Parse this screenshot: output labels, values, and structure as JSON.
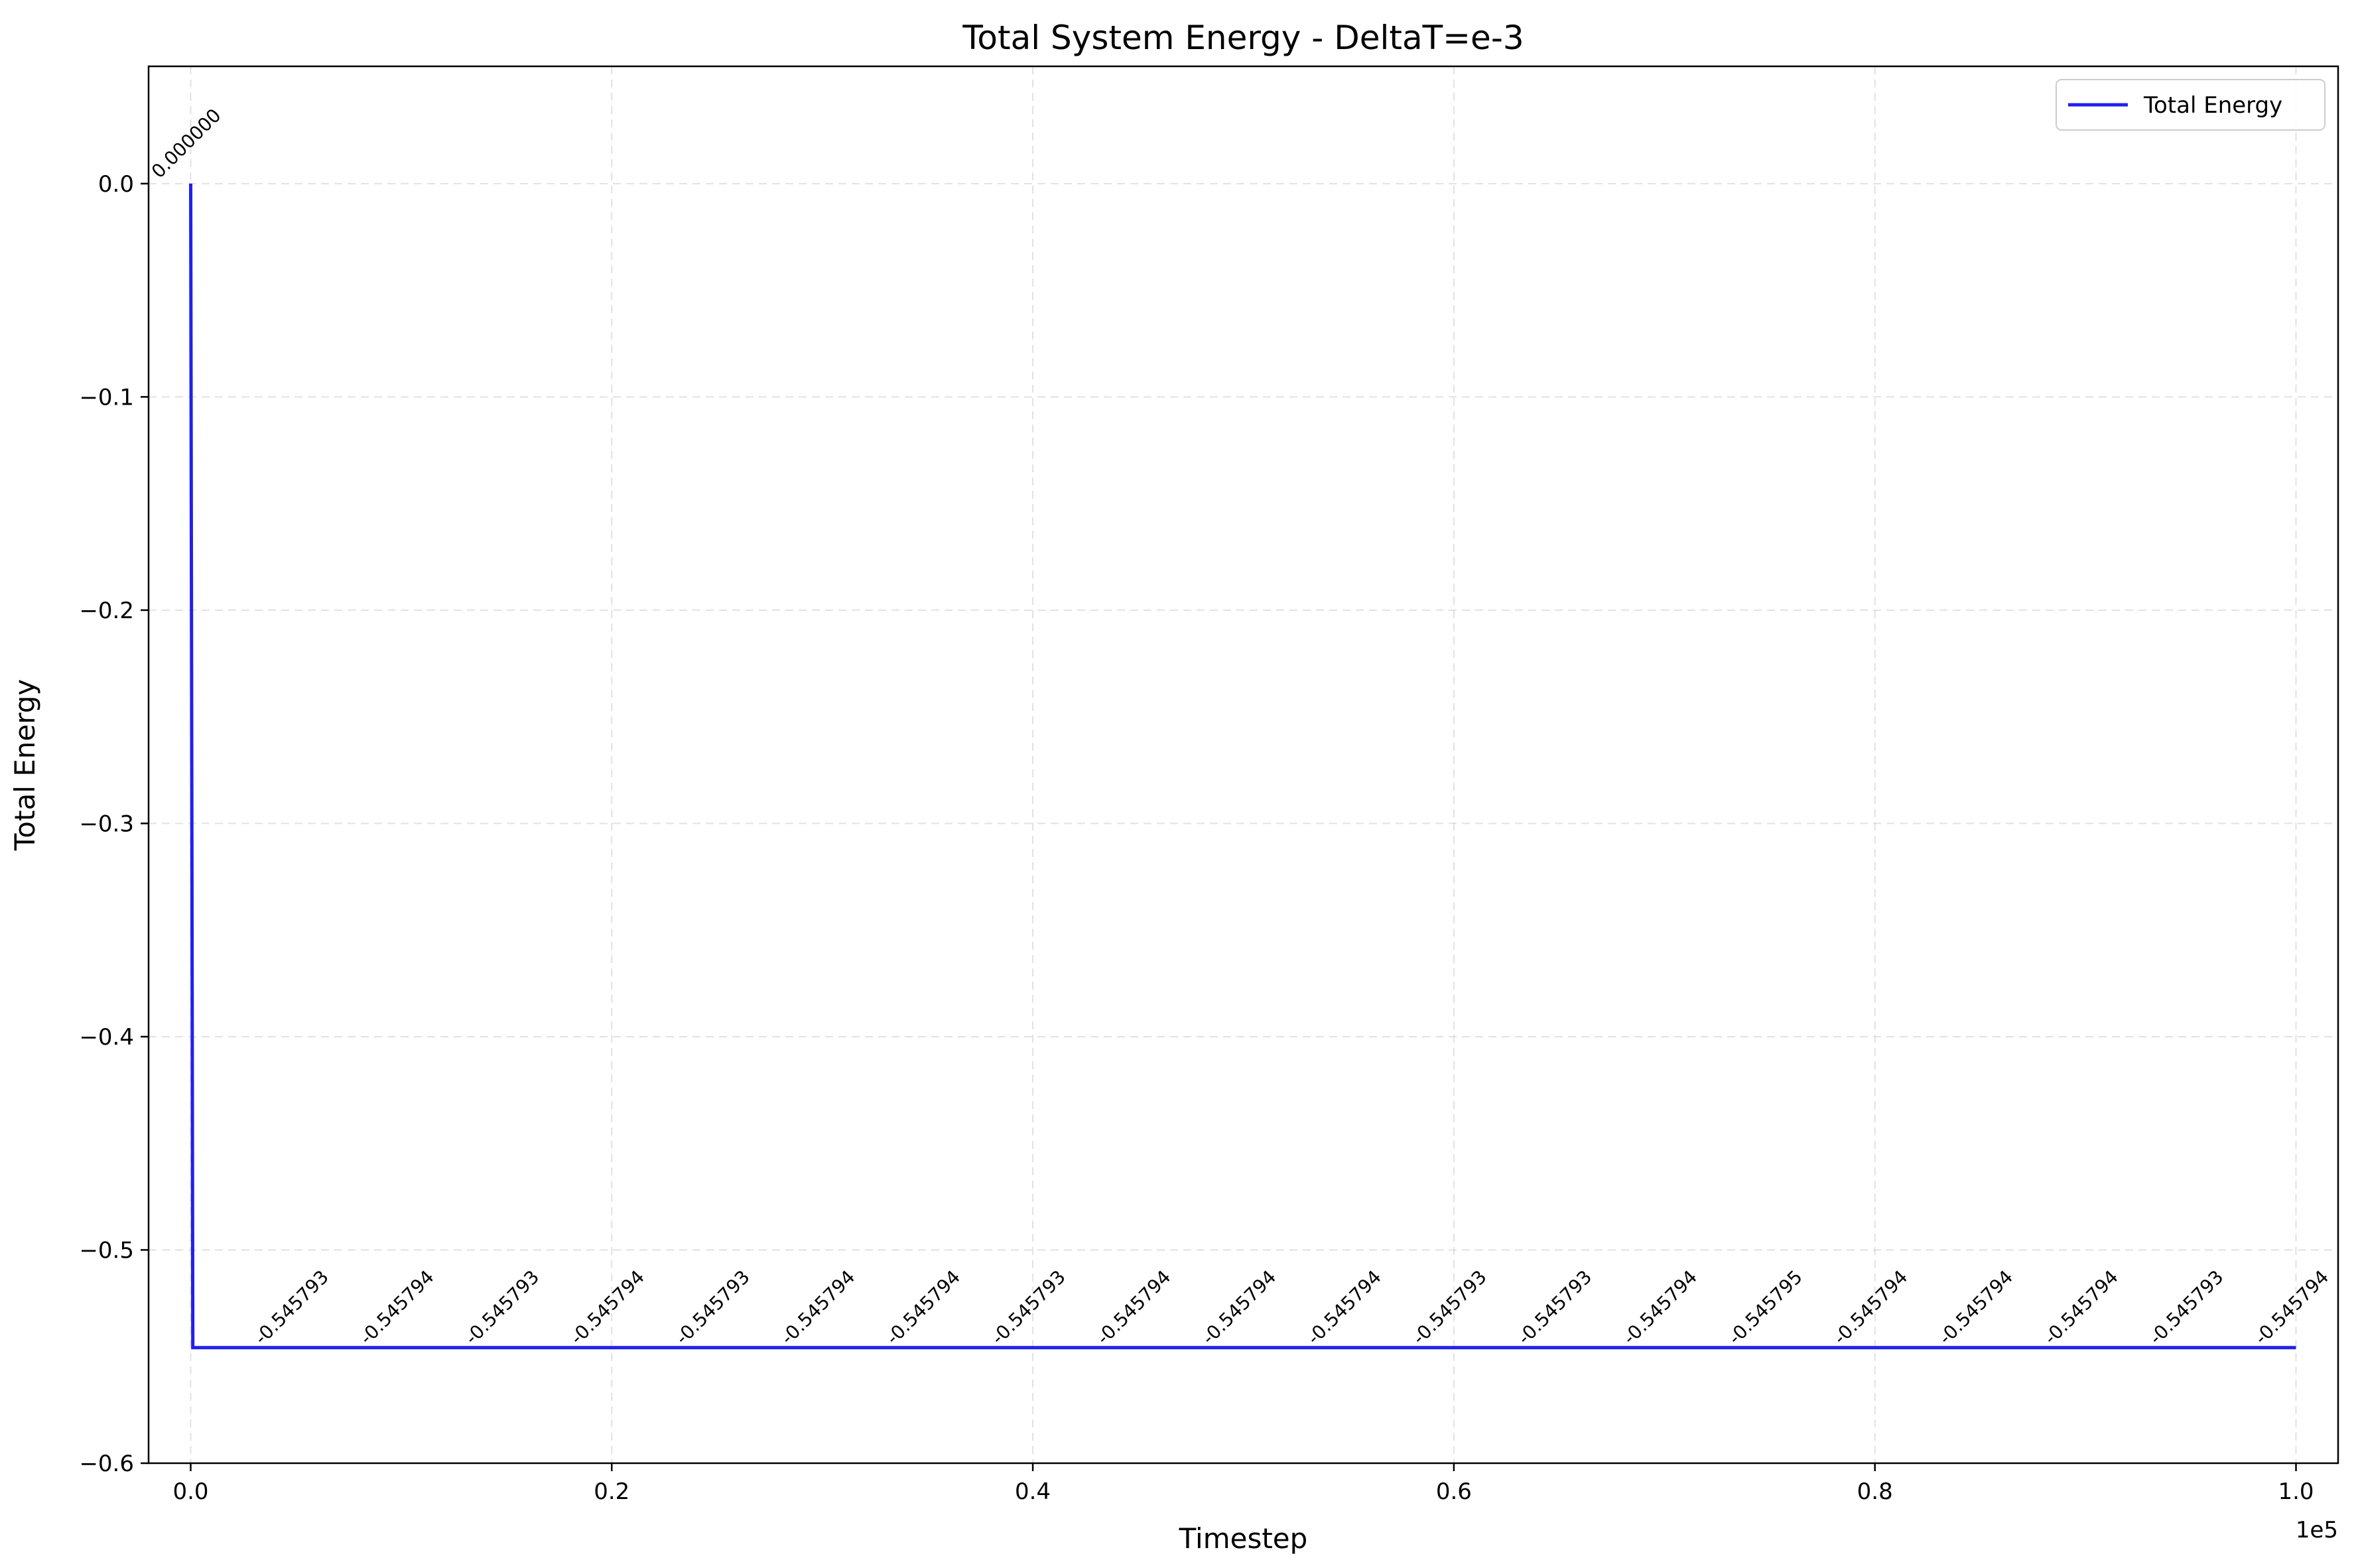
{
  "chart_data": {
    "type": "line",
    "title": "Total System Energy - DeltaT=e-3",
    "xlabel": "Timestep",
    "ylabel": "Total Energy",
    "x_offset_label": "1e5",
    "xlim": [
      -0.02,
      1.02
    ],
    "ylim": [
      -0.6,
      0.055
    ],
    "x_ticks": [
      0.0,
      0.2,
      0.4,
      0.6,
      0.8,
      1.0
    ],
    "x_tick_labels": [
      "0.0",
      "0.2",
      "0.4",
      "0.6",
      "0.8",
      "1.0"
    ],
    "y_ticks": [
      0.0,
      -0.1,
      -0.2,
      -0.3,
      -0.4,
      -0.5,
      -0.6
    ],
    "y_tick_labels": [
      "0.0",
      "−0.1",
      "−0.2",
      "−0.3",
      "−0.4",
      "−0.5",
      "−0.6"
    ],
    "grid": true,
    "legend_position": "top-right",
    "series": [
      {
        "name": "Total Energy",
        "color": "#2020ee",
        "x": [
          0.0,
          0.001,
          0.05,
          0.1,
          0.15,
          0.2,
          0.25,
          0.3,
          0.35,
          0.4,
          0.45,
          0.5,
          0.55,
          0.6,
          0.65,
          0.7,
          0.75,
          0.8,
          0.85,
          0.9,
          0.95,
          1.0
        ],
        "y": [
          0.0,
          -0.545793,
          -0.545793,
          -0.545794,
          -0.545793,
          -0.545794,
          -0.545793,
          -0.545794,
          -0.545794,
          -0.545793,
          -0.545794,
          -0.545794,
          -0.545794,
          -0.545793,
          -0.545793,
          -0.545794,
          -0.545795,
          -0.545794,
          -0.545794,
          -0.545794,
          -0.545793,
          -0.545794
        ]
      }
    ],
    "annotations": [
      {
        "x": 0.0,
        "y": 0.0,
        "text": "0.000000"
      },
      {
        "x": 0.05,
        "y": -0.545793,
        "text": "-0.545793"
      },
      {
        "x": 0.1,
        "y": -0.545794,
        "text": "-0.545794"
      },
      {
        "x": 0.15,
        "y": -0.545793,
        "text": "-0.545793"
      },
      {
        "x": 0.2,
        "y": -0.545794,
        "text": "-0.545794"
      },
      {
        "x": 0.25,
        "y": -0.545793,
        "text": "-0.545793"
      },
      {
        "x": 0.3,
        "y": -0.545794,
        "text": "-0.545794"
      },
      {
        "x": 0.35,
        "y": -0.545794,
        "text": "-0.545794"
      },
      {
        "x": 0.4,
        "y": -0.545793,
        "text": "-0.545793"
      },
      {
        "x": 0.45,
        "y": -0.545794,
        "text": "-0.545794"
      },
      {
        "x": 0.5,
        "y": -0.545794,
        "text": "-0.545794"
      },
      {
        "x": 0.55,
        "y": -0.545794,
        "text": "-0.545794"
      },
      {
        "x": 0.6,
        "y": -0.545793,
        "text": "-0.545793"
      },
      {
        "x": 0.65,
        "y": -0.545793,
        "text": "-0.545793"
      },
      {
        "x": 0.7,
        "y": -0.545794,
        "text": "-0.545794"
      },
      {
        "x": 0.75,
        "y": -0.545795,
        "text": "-0.545795"
      },
      {
        "x": 0.8,
        "y": -0.545794,
        "text": "-0.545794"
      },
      {
        "x": 0.85,
        "y": -0.545794,
        "text": "-0.545794"
      },
      {
        "x": 0.9,
        "y": -0.545794,
        "text": "-0.545794"
      },
      {
        "x": 0.95,
        "y": -0.545793,
        "text": "-0.545793"
      },
      {
        "x": 1.0,
        "y": -0.545794,
        "text": "-0.545794"
      }
    ]
  }
}
